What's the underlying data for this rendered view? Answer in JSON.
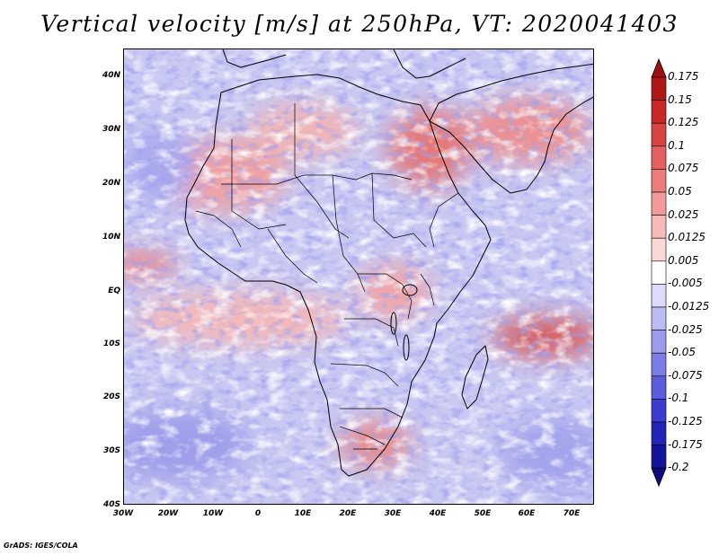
{
  "title": "Vertical velocity [m/s] at 250hPa, VT: 2020041403",
  "credit": "GrADS: IGES/COLA",
  "map": {
    "type": "heatmap",
    "variable": "Vertical velocity",
    "units": "m/s",
    "level": "250hPa",
    "valid_time": "2020041403",
    "lon_range": [
      -30,
      75
    ],
    "lat_range": [
      -40,
      45
    ],
    "lat_ticks": [
      "40N",
      "30N",
      "20N",
      "10N",
      "EQ",
      "10S",
      "20S",
      "30S",
      "40S"
    ],
    "lon_ticks": [
      "30W",
      "20W",
      "10W",
      "0",
      "10E",
      "20E",
      "30E",
      "40E",
      "50E",
      "60E",
      "70E"
    ],
    "features": [
      "coastlines",
      "country borders",
      "lakes"
    ]
  },
  "colorbar": {
    "labels": [
      "0.175",
      "0.15",
      "0.125",
      "0.1",
      "0.075",
      "0.05",
      "0.025",
      "0.0125",
      "0.005",
      "-0.005",
      "-0.0125",
      "-0.025",
      "-0.05",
      "-0.075",
      "-0.1",
      "-0.125",
      "-0.175",
      "-0.2"
    ],
    "colors": [
      "#b01818",
      "#c82828",
      "#d84444",
      "#e46060",
      "#ec7c7c",
      "#f29a9a",
      "#f6b8b8",
      "#fad8d8",
      "#ffffff",
      "#dcdcfa",
      "#bcbcf4",
      "#9c9cee",
      "#7c7ce6",
      "#5c5cdc",
      "#3c3cd0",
      "#2424b8",
      "#14149a"
    ],
    "top_color": "#9c1010",
    "bottom_color": "#0c0c80"
  }
}
